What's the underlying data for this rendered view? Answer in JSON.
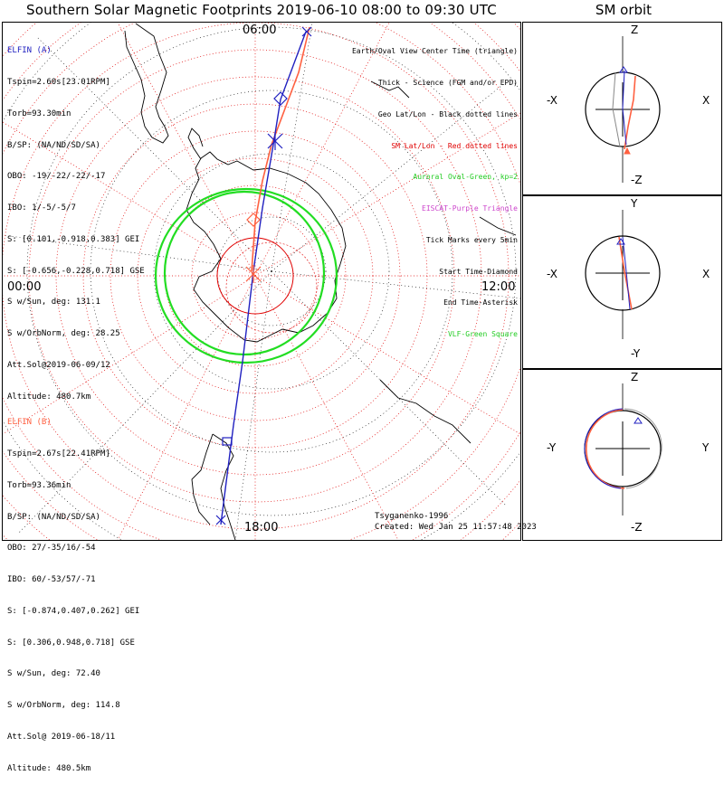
{
  "title": "Southern Solar Magnetic Footprints 2019-06-10 08:00 to 09:30 UTC",
  "orbit_title": "SM orbit",
  "map": {
    "time_labels": {
      "top": "06:00",
      "left": "00:00",
      "right": "12:00",
      "bottom": "18:00"
    }
  },
  "legend": [
    {
      "text": "Earth/Oval View Center Time (triangle)",
      "color": "#000000"
    },
    {
      "text": "Thick - Science (FGM and/or EPD)",
      "color": "#000000"
    },
    {
      "text": "Geo Lat/Lon - Black dotted lines",
      "color": "#000000"
    },
    {
      "text": "SM Lat/Lon - Red dotted lines",
      "color": "#e00000"
    },
    {
      "text": "Auroral Oval-Green, kp=2",
      "color": "#22cc22"
    },
    {
      "text": "EISCAT-Purple Triangle",
      "color": "#cc44cc"
    },
    {
      "text": "Tick Marks every 5min",
      "color": "#000000"
    },
    {
      "text": "Start Time-Diamond",
      "color": "#000000"
    },
    {
      "text": "End Time-Asterisk",
      "color": "#000000"
    },
    {
      "text": "VLF-Green Square",
      "color": "#22cc22"
    }
  ],
  "elfin_a": {
    "name": "ELFIN (A)",
    "color": "#2020c0",
    "lines": [
      "Tspin=2.60s[23.01RPM]",
      "Torb=93.30min",
      "B/SP: (NA/ND/SD/SA)",
      "OBO: -19/-22/-22/-17",
      "IBO: 1/-5/-5/7",
      "S: [0.101,-0.918,0.383] GEI",
      "S: [-0.656,-0.228,0.718] GSE",
      "S w/Sun, deg: 131.1",
      "S w/OrbNorm, deg: 28.25",
      "Att.Sol@2019-06-09/12",
      "Altitude: 480.7km"
    ]
  },
  "elfin_b": {
    "name": "ELFIN (B)",
    "color": "#ff6040",
    "lines": [
      "Tspin=2.67s[22.41RPM]",
      "Torb=93.36min",
      "B/SP: (NA/ND/SD/SA)",
      "OBO: 27/-35/16/-54",
      "IBO: 60/-53/57/-71",
      "S: [-0.874,0.407,0.262] GEI",
      "S: [0.306,0.948,0.718] GSE",
      "S w/Sun, deg: 72.40",
      "S w/OrbNorm, deg: 114.8",
      "Att.Sol@ 2019-06-18/11",
      "Altitude: 480.5km"
    ]
  },
  "footer": {
    "model": "Tsyganenko-1996",
    "created": "Created: Wed Jan 25 11:57:48 2023"
  },
  "orbit_panels": [
    {
      "top": "Z",
      "bottom": "-Z",
      "left": "-X",
      "right": "X"
    },
    {
      "top": "Y",
      "bottom": "-Y",
      "left": "-X",
      "right": "X"
    },
    {
      "top": "Z",
      "bottom": "-Z",
      "left": "-Y",
      "right": "Y"
    }
  ],
  "colors": {
    "sm_grid": "#e00000",
    "geo_grid": "#000000",
    "aurora": "#22dd22",
    "elfin_a": "#2020c0",
    "elfin_b": "#ff6040",
    "coast": "#000000"
  }
}
